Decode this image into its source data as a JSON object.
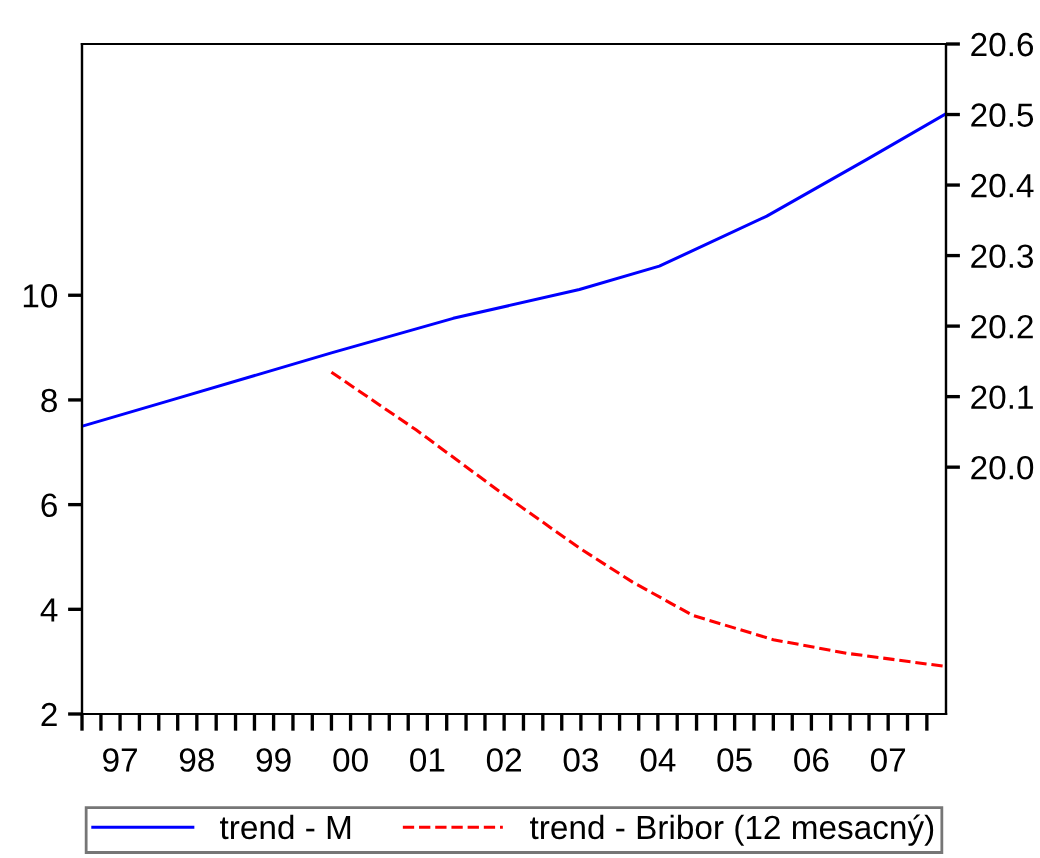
{
  "chart_data": {
    "type": "line",
    "xlim": [
      "1997-01-01",
      "2008-04-01"
    ],
    "xticks": [
      {
        "value": "1997-01-01",
        "label": null
      },
      {
        "value": "1997-04-01",
        "label": null
      },
      {
        "value": "1997-07-01",
        "label": "97"
      },
      {
        "value": "1997-10-01",
        "label": null
      },
      {
        "value": "1998-01-01",
        "label": null
      },
      {
        "value": "1998-04-01",
        "label": null
      },
      {
        "value": "1998-07-01",
        "label": "98"
      },
      {
        "value": "1998-10-01",
        "label": null
      },
      {
        "value": "1999-01-01",
        "label": null
      },
      {
        "value": "1999-04-01",
        "label": null
      },
      {
        "value": "1999-07-01",
        "label": "99"
      },
      {
        "value": "1999-10-01",
        "label": null
      },
      {
        "value": "2000-01-01",
        "label": null
      },
      {
        "value": "2000-04-01",
        "label": null
      },
      {
        "value": "2000-07-01",
        "label": "00"
      },
      {
        "value": "2000-10-01",
        "label": null
      },
      {
        "value": "2001-01-01",
        "label": null
      },
      {
        "value": "2001-04-01",
        "label": null
      },
      {
        "value": "2001-07-01",
        "label": "01"
      },
      {
        "value": "2001-10-01",
        "label": null
      },
      {
        "value": "2002-01-01",
        "label": null
      },
      {
        "value": "2002-04-01",
        "label": null
      },
      {
        "value": "2002-07-01",
        "label": "02"
      },
      {
        "value": "2002-10-01",
        "label": null
      },
      {
        "value": "2003-01-01",
        "label": null
      },
      {
        "value": "2003-04-01",
        "label": null
      },
      {
        "value": "2003-07-01",
        "label": "03"
      },
      {
        "value": "2003-10-01",
        "label": null
      },
      {
        "value": "2004-01-01",
        "label": null
      },
      {
        "value": "2004-04-01",
        "label": null
      },
      {
        "value": "2004-07-01",
        "label": "04"
      },
      {
        "value": "2004-10-01",
        "label": null
      },
      {
        "value": "2005-01-01",
        "label": null
      },
      {
        "value": "2005-04-01",
        "label": null
      },
      {
        "value": "2005-07-01",
        "label": "05"
      },
      {
        "value": "2005-10-01",
        "label": null
      },
      {
        "value": "2006-01-01",
        "label": null
      },
      {
        "value": "2006-04-01",
        "label": null
      },
      {
        "value": "2006-07-01",
        "label": "06"
      },
      {
        "value": "2006-10-01",
        "label": null
      },
      {
        "value": "2007-01-01",
        "label": null
      },
      {
        "value": "2007-04-01",
        "label": null
      },
      {
        "value": "2007-07-01",
        "label": "07"
      },
      {
        "value": "2007-10-01",
        "label": null
      },
      {
        "value": "2008-01-01",
        "label": null
      }
    ],
    "ylim": [
      2,
      14.8
    ],
    "yticks": [
      2,
      4,
      6,
      8,
      10
    ],
    "y2lim": [
      19.65,
      20.6
    ],
    "y2ticks": [
      {
        "value": 20.0,
        "label": "20.0"
      },
      20.1,
      20.2,
      20.3,
      20.4,
      20.5,
      20.6
    ],
    "grid": false,
    "legend": "bottom",
    "series": [
      {
        "name": "trend - M",
        "color": "#0000ff",
        "axis": "y2",
        "line_style": "solid",
        "x": [
          "1997-01-01",
          "1998-03-01",
          "2000-04-01",
          "2001-11-01",
          "2003-06-24",
          "2004-07-08",
          "2005-12-01",
          "2007-03-20",
          "2008-03-25"
        ],
        "values": [
          20.058,
          20.095,
          20.162,
          20.211,
          20.252,
          20.285,
          20.356,
          20.436,
          20.5
        ]
      },
      {
        "name": "trend - Bribor (12 mesacný)",
        "color": "#ff0000",
        "axis": "y",
        "line_style": "dashed",
        "x": [
          "2000-04-01",
          "2001-05-08",
          "2002-06-06",
          "2003-06-24",
          "2004-03-03",
          "2004-12-16",
          "2006-01-01",
          "2006-12-16",
          "2008-03-28"
        ],
        "values": [
          8.53,
          7.43,
          6.26,
          5.17,
          4.52,
          3.88,
          3.42,
          3.16,
          2.91
        ]
      }
    ]
  }
}
